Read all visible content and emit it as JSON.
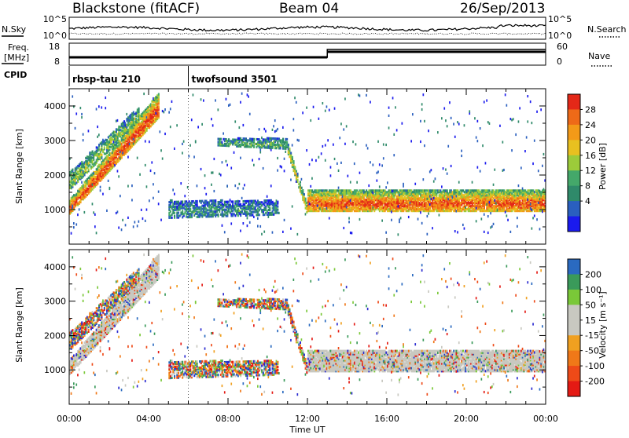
{
  "header": {
    "station": "Blackstone (fitACF)",
    "beam": "Beam 04",
    "date": "26/Sep/2013"
  },
  "panels": {
    "nsky": {
      "label": "N.Sky",
      "tick_top": "10^5",
      "tick_bottom": "10^0"
    },
    "nsearch": {
      "label": "N.Search",
      "tick_top": "10^5",
      "tick_bottom": "10^0"
    },
    "freq": {
      "label_line1": "Freq.",
      "label_line2": "[MHz]",
      "tick_top": "18",
      "tick_bottom": "8"
    },
    "nave": {
      "label": "Nave",
      "tick_top": "60",
      "tick_bottom": "0"
    },
    "cpid": {
      "label": "CPID"
    }
  },
  "cpid_segments": [
    {
      "name": "rbsp-tau 210",
      "start_h": 0.0
    },
    {
      "name": "twofsound 3501",
      "start_h": 6.0
    }
  ],
  "chart_data": [
    {
      "type": "heatmap",
      "name": "power",
      "xlabel": "",
      "ylabel": "Slant Range [km]",
      "xlim_hours": [
        0,
        24
      ],
      "ylim": [
        0,
        4500
      ],
      "yticks": [
        1000,
        2000,
        3000,
        4000
      ],
      "colorbar": {
        "label": "Power [dB]",
        "ticks": [
          "4",
          "8",
          "12",
          "16",
          "20",
          "24",
          "28"
        ],
        "colors": [
          "#1a1aee",
          "#2a5fbf",
          "#2f8a6a",
          "#44a86a",
          "#9ccb3a",
          "#e8c020",
          "#f39a18",
          "#ee6a18",
          "#e42818"
        ]
      },
      "echo_bands": [
        {
          "t0": 0.0,
          "t1": 4.5,
          "r0": 900,
          "r1": 1300,
          "r_end0": 3700,
          "r_end1": 4400,
          "strength": 0.9
        },
        {
          "t0": 0.0,
          "t1": 3.5,
          "r0": 1600,
          "r1": 2100,
          "r_end0": 3600,
          "r_end1": 4000,
          "strength": 0.45
        },
        {
          "t0": 5.0,
          "t1": 10.5,
          "r0": 800,
          "r1": 1300,
          "r_end0": 900,
          "r_end1": 1300,
          "strength": 0.25
        },
        {
          "t0": 7.5,
          "t1": 11.0,
          "r0": 2900,
          "r1": 3100,
          "r_end0": 2800,
          "r_end1": 3100,
          "strength": 0.35
        },
        {
          "t0": 11.0,
          "t1": 12.0,
          "r0": 2700,
          "r1": 3000,
          "r_end0": 900,
          "r_end1": 1200,
          "strength": 0.55
        },
        {
          "t0": 12.0,
          "t1": 24.0,
          "r0": 1000,
          "r1": 1600,
          "r_end0": 1000,
          "r_end1": 1600,
          "strength": 0.85
        }
      ]
    },
    {
      "type": "heatmap",
      "name": "velocity",
      "xlabel": "Time UT",
      "ylabel": "Slant Range [km]",
      "xlim_hours": [
        0,
        24
      ],
      "xticks": [
        "00:00",
        "04:00",
        "08:00",
        "12:00",
        "16:00",
        "20:00",
        "00:00"
      ],
      "ylim": [
        0,
        4500
      ],
      "yticks": [
        1000,
        2000,
        3000,
        4000
      ],
      "colorbar": {
        "label": "Velocity [m s⁻¹]",
        "ticks": [
          "200",
          "100",
          "50",
          "15",
          "-15",
          "-50",
          "-100",
          "-200"
        ],
        "colors": [
          "#2a2ad0",
          "#2a6ac0",
          "#3a9a5a",
          "#7ac838",
          "#c8c8c0",
          "#c8c8c0",
          "#f0a020",
          "#f07818",
          "#ee4a18",
          "#e41a14"
        ]
      }
    }
  ]
}
